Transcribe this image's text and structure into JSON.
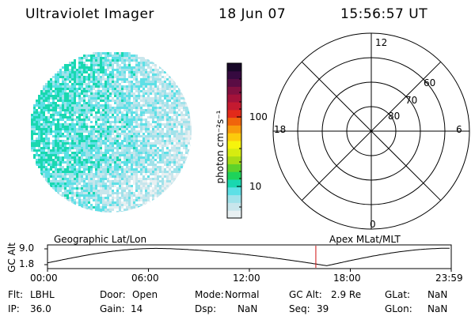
{
  "header": {
    "title": "Ultraviolet Imager",
    "date": "18 Jun 07",
    "time": "15:56:57 UT"
  },
  "colorbar": {
    "label": "photon cm⁻²s⁻¹",
    "ticks": [
      "100",
      "10"
    ],
    "colors": [
      "#e8f0f2",
      "#c8e6ec",
      "#a0e2ea",
      "#5de0e6",
      "#19d8b0",
      "#1ed35a",
      "#5ed22a",
      "#a8dc16",
      "#d6ec10",
      "#f6f40c",
      "#fccb0c",
      "#f89a0c",
      "#f0640c",
      "#e22a1a",
      "#c41a30",
      "#a4123a",
      "#821040",
      "#5a0c44",
      "#360a40",
      "#180828"
    ]
  },
  "polar_grid": {
    "mlt_labels": {
      "top": "12",
      "left": "18",
      "right": "6",
      "bottom": "0"
    },
    "lat_labels": [
      "60",
      "70",
      "80"
    ]
  },
  "altitude_plot": {
    "ylabel": "GC Alt",
    "y_ticks": [
      "9.0",
      "1.8"
    ],
    "left_label": "Geographic Lat/Lon",
    "right_label": "Apex MLat/MLT",
    "x_ticks": [
      "00:00",
      "06:00",
      "12:00",
      "18:00",
      "23:59"
    ],
    "current_time_hours": 15.95
  },
  "status": {
    "row1": [
      {
        "key": "Flt:",
        "value": "LBHL"
      },
      {
        "key": "Door:",
        "value": "Open"
      },
      {
        "key": "Mode:",
        "value": "Normal"
      },
      {
        "key": "GC Alt:",
        "value": "2.9 Re"
      },
      {
        "key": "GLat:",
        "value": "NaN"
      }
    ],
    "row2": [
      {
        "key": "IP:",
        "value": "36.0"
      },
      {
        "key": "Gain:",
        "value": "14"
      },
      {
        "key": "Dsp:",
        "value": "NaN"
      },
      {
        "key": "Seq:",
        "value": "39"
      },
      {
        "key": "GLon:",
        "value": "NaN"
      }
    ]
  }
}
